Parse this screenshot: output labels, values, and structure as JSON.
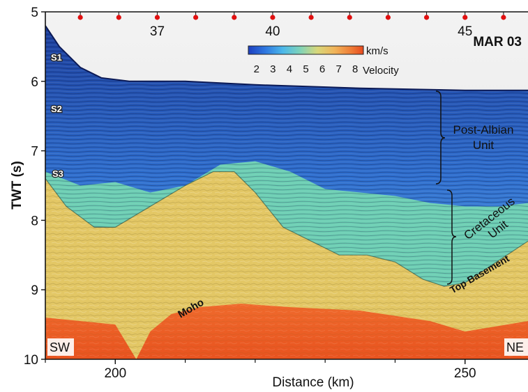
{
  "chart_data": {
    "type": "heatmap",
    "title": "MAR 03",
    "xlabel": "Distance (km)",
    "ylabel": "TWT (s)",
    "xlim": [
      190,
      259
    ],
    "ylim": [
      10,
      5
    ],
    "x_ticks": [
      200,
      250
    ],
    "y_ticks": [
      5,
      6,
      7,
      8,
      9,
      10
    ],
    "obs_markers": [
      {
        "index": 35,
        "x": 195,
        "label": ""
      },
      {
        "index": 36,
        "x": 200.5,
        "label": ""
      },
      {
        "index": 37,
        "x": 206,
        "label": "37"
      },
      {
        "index": 38,
        "x": 211.5,
        "label": ""
      },
      {
        "index": 39,
        "x": 217,
        "label": ""
      },
      {
        "index": 40,
        "x": 222.5,
        "label": "40"
      },
      {
        "index": 41,
        "x": 228,
        "label": ""
      },
      {
        "index": 42,
        "x": 233.5,
        "label": ""
      },
      {
        "index": 43,
        "x": 239,
        "label": ""
      },
      {
        "index": 44,
        "x": 244.5,
        "label": ""
      },
      {
        "index": 45,
        "x": 250,
        "label": "45"
      },
      {
        "index": 46,
        "x": 255.5,
        "label": ""
      },
      {
        "index": 47,
        "x": 261,
        "label": ""
      }
    ],
    "colorbar": {
      "unit": "km/s",
      "label": "Velocity",
      "ticks": [
        "2",
        "3",
        "4",
        "5",
        "6",
        "7",
        "8"
      ],
      "range": [
        1.5,
        8.5
      ]
    },
    "annotations": {
      "s1": "S1",
      "s2": "S2",
      "s3": "S3",
      "post_albian": [
        "Post-Albian",
        "Unit"
      ],
      "cretaceous": [
        "Cretaceous",
        "Unit"
      ],
      "top_basement": "Top Basement",
      "moho": "Moho",
      "sw": "SW",
      "ne": "NE"
    },
    "horizons": {
      "seafloor": [
        [
          190,
          5.2
        ],
        [
          192,
          5.5
        ],
        [
          195,
          5.8
        ],
        [
          198,
          5.95
        ],
        [
          202,
          6.0
        ],
        [
          210,
          6.0
        ],
        [
          220,
          6.05
        ],
        [
          235,
          6.1
        ],
        [
          250,
          6.13
        ],
        [
          259,
          6.13
        ]
      ],
      "post_albian_base": [
        [
          190,
          7.3
        ],
        [
          195,
          7.5
        ],
        [
          200,
          7.45
        ],
        [
          205,
          7.6
        ],
        [
          210,
          7.5
        ],
        [
          215,
          7.2
        ],
        [
          220,
          7.15
        ],
        [
          225,
          7.3
        ],
        [
          230,
          7.55
        ],
        [
          235,
          7.6
        ],
        [
          240,
          7.65
        ],
        [
          245,
          7.75
        ],
        [
          250,
          7.8
        ],
        [
          255,
          7.8
        ],
        [
          259,
          7.75
        ]
      ],
      "top_basement": [
        [
          190,
          7.4
        ],
        [
          193,
          7.8
        ],
        [
          197,
          8.1
        ],
        [
          200,
          8.1
        ],
        [
          205,
          7.8
        ],
        [
          210,
          7.5
        ],
        [
          214,
          7.3
        ],
        [
          217,
          7.3
        ],
        [
          220,
          7.6
        ],
        [
          224,
          8.1
        ],
        [
          228,
          8.3
        ],
        [
          232,
          8.5
        ],
        [
          236,
          8.5
        ],
        [
          240,
          8.6
        ],
        [
          244,
          8.85
        ],
        [
          247,
          8.95
        ],
        [
          250,
          8.9
        ],
        [
          253,
          8.7
        ],
        [
          256,
          8.5
        ],
        [
          259,
          8.3
        ]
      ],
      "moho": [
        [
          190,
          9.4
        ],
        [
          200,
          9.5
        ],
        [
          203,
          10.0
        ],
        [
          205,
          9.6
        ],
        [
          208,
          9.35
        ],
        [
          212,
          9.25
        ],
        [
          218,
          9.2
        ],
        [
          225,
          9.25
        ],
        [
          235,
          9.3
        ],
        [
          245,
          9.45
        ],
        [
          250,
          9.6
        ],
        [
          253,
          9.55
        ],
        [
          259,
          9.45
        ]
      ]
    },
    "grid": false,
    "legend": "colorbar-top-center"
  }
}
